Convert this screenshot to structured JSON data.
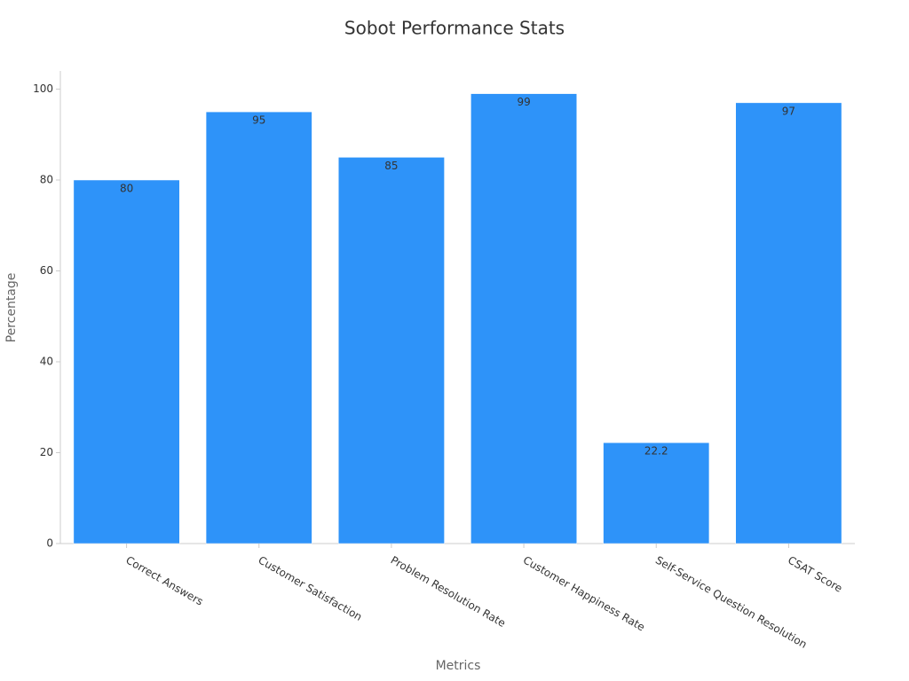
{
  "chart_data": {
    "type": "bar",
    "title": "Sobot Performance Stats",
    "x_label": "Metrics",
    "y_label": "Percentage",
    "categories": [
      "Correct Answers",
      "Customer Satisfaction",
      "Problem Resolution Rate",
      "Customer Happiness Rate",
      "Self-Service Question Resolution",
      "CSAT Score"
    ],
    "values": [
      80,
      95,
      85,
      99,
      22.2,
      97
    ],
    "color": "#2e93f9",
    "ylim": [
      0,
      104
    ],
    "yticks": [
      0,
      20,
      40,
      60,
      80,
      100
    ],
    "grid": false
  }
}
